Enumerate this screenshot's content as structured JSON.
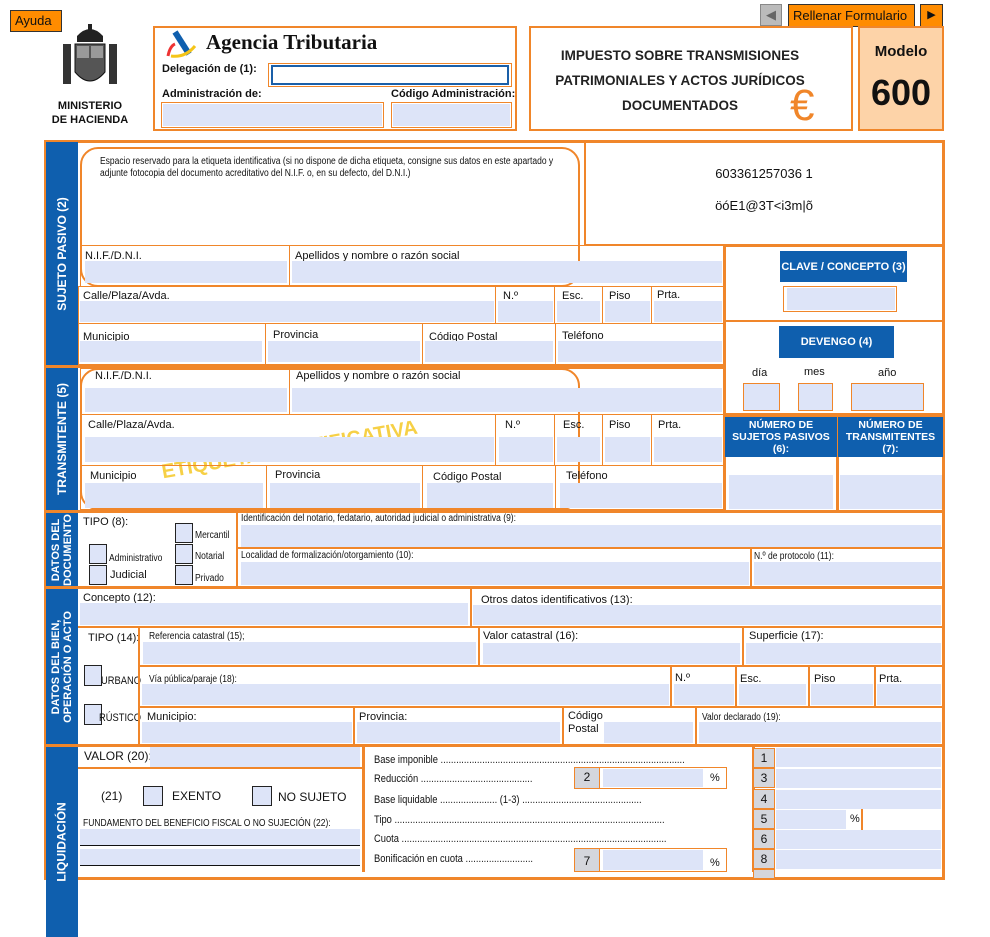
{
  "toolbar": {
    "help": "Ayuda",
    "fill_form": "Rellenar Formulario",
    "prev_icon": "triangle-left-icon",
    "next_icon": "triangle-right-icon"
  },
  "header": {
    "ministry_line1": "MINISTERIO",
    "ministry_line2": "DE HACIENDA",
    "agency": "Agencia Tributaria",
    "delegacion_label": "Delegación de (1):",
    "delegacion_value": "",
    "administracion_label": "Administración de:",
    "codigo_label": "Código Administración:",
    "title_line1": "IMPUESTO SOBRE TRANSMISIONES",
    "title_line2": "PATRIMONIALES Y ACTOS JURÍDICOS",
    "title_line3": "DOCUMENTADOS",
    "euro": "€",
    "modelo_label": "Modelo",
    "modelo_number": "600"
  },
  "colors": {
    "orange": "#f0862a",
    "blue": "#0f5fae",
    "field": "#dde4f8",
    "button": "#ff8c00"
  },
  "sujeto": {
    "tab": "SUJETO PASIVO (2)",
    "etiqueta_note": "Espacio reservado para la etiqueta identificativa (si no dispone de dicha etiqueta, consigne sus datos en este apartado y adjunte fotocopia del documento acreditativo del N.I.F. o, en su defecto, del D.N.I.)",
    "nif": "N.I.F./D.N.I.",
    "apellidos": "Apellidos y nombre o razón social",
    "calle": "Calle/Plaza/Avda.",
    "numero": "N.º",
    "esc": "Esc.",
    "piso": "Piso",
    "prta": "Prta.",
    "municipio": "Municipio",
    "provincia": "Provincia",
    "cp": "Código Postal",
    "telefono": "Teléfono"
  },
  "barcode": {
    "line1": "603361257036 1",
    "line2": "öóE1@3T<i3m|õ"
  },
  "clave": {
    "title": "CLAVE / CONCEPTO (3)"
  },
  "devengo": {
    "title": "DEVENGO (4)",
    "dia": "día",
    "mes": "mes",
    "anio": "año"
  },
  "numeros": {
    "sujetos": "NÚMERO DE SUJETOS PASIVOS (6):",
    "transmitentes": "NÚMERO DE TRANSMITENTES (7):"
  },
  "transmitente": {
    "tab": "TRANSMITENTE (5)",
    "watermark": "ETIQUETA IDENTIFICATIVA",
    "nif": "N.I.F./D.N.I.",
    "apellidos": "Apellidos y nombre o razón social",
    "calle": "Calle/Plaza/Avda.",
    "numero": "N.º",
    "esc": "Esc.",
    "piso": "Piso",
    "prta": "Prta.",
    "municipio": "Municipio",
    "provincia": "Provincia",
    "cp": "Código Postal",
    "telefono": "Teléfono"
  },
  "documento": {
    "tab_line1": "DATOS DEL",
    "tab_line2": "DOCUMENTO",
    "tipo": "TIPO (8):",
    "administrativo": "Administrativo",
    "judicial": "Judicial",
    "mercantil": "Mercantil",
    "notarial": "Notarial",
    "privado": "Privado",
    "notario": "Identificación del notario, fedatario, autoridad judicial o administrativa (9):",
    "localidad": "Localidad de formalización/otorgamiento (10):",
    "protocolo": "N.º de protocolo (11):"
  },
  "bien": {
    "tab_line1": "DATOS DEL BIEN,",
    "tab_line2": "OPERACIÓN O ACTO",
    "concepto": "Concepto (12):",
    "otros": "Otros datos identificativos (13):",
    "tipo": "TIPO (14):",
    "referencia": "Referencia catastral (15);",
    "valor_catastral": "Valor catastral (16):",
    "superficie": "Superficie (17):",
    "urbano": "URBANO",
    "rustico": "RÚSTICO",
    "via": "Vía pública/paraje (18):",
    "numero": "N.º",
    "esc": "Esc.",
    "piso": "Piso",
    "prta": "Prta.",
    "municipio": "Municipio:",
    "provincia": "Provincia:",
    "cp_line1": "Código",
    "cp_line2": "Postal",
    "valor_declarado": "Valor declarado (19):"
  },
  "liquidacion": {
    "tab": "LIQUIDACIÓN",
    "valor": "VALOR (20):",
    "n21": "(21)",
    "exento": "EXENTO",
    "no_sujeto": "NO SUJETO",
    "fundamento": "FUNDAMENTO DEL BENEFICIO FISCAL O NO SUJECIÓN (22):",
    "rows": [
      {
        "label": "Base imponible ..............................................................................................",
        "box": "1"
      },
      {
        "label": "Reducción ...........................................",
        "box": "3"
      },
      {
        "label": "Base liquidable ...................... (1-3) ..............................................",
        "box": "4"
      },
      {
        "label": "Tipo ........................................................................................................",
        "box": "5"
      },
      {
        "label": "Cuota ......................................................................................................",
        "box": "6"
      },
      {
        "label": "Bonificación en cuota ..........................",
        "box": "8"
      }
    ],
    "reduccion_box": "2",
    "bonificacion_box": "7",
    "percent": "%"
  }
}
